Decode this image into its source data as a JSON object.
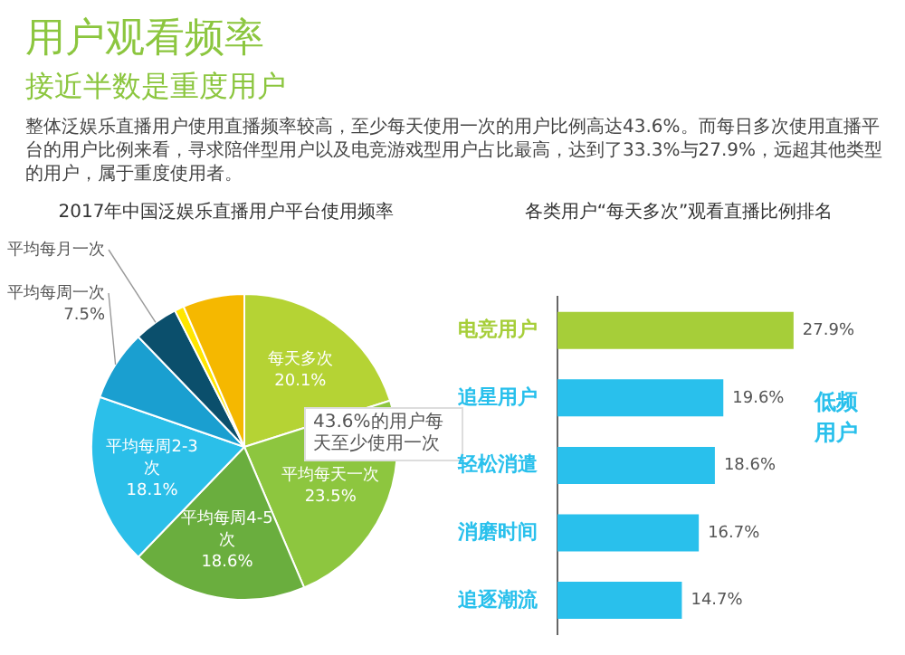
{
  "chart_data": [
    {
      "type": "pie",
      "title": "2017年中国泛娱乐直播用户平台使用频率",
      "annotations": [
        "用户观看频率",
        "接近半数是重度用户",
        "整体泛娱乐直播用户使用直播频率较高，至少每天使用一次的用户比例高达43.6%。而每日多次使用直播平台的用户比例来看，寻求陪伴型用户以及电竞游戏型用户占比最高，达到了33.3%与27.9%，远超其他类型的用户，属于重度使用者。",
        "43.6%的用户每天至少使用一次"
      ],
      "categories": [
        "每天多次",
        "平均每天一次",
        "平均每周4-5次",
        "平均每周2-3次",
        "平均每周一次",
        "平均每月一次",
        null,
        null
      ],
      "values": [
        20.1,
        23.5,
        18.6,
        18.1,
        7.5,
        4.7,
        1.0,
        6.5
      ],
      "value_labels": [
        "20.1%",
        "23.5%",
        "18.6%",
        "18.1%",
        "7.5%",
        null,
        null,
        null
      ],
      "colors": [
        "#b5d334",
        "#8dc63f",
        "#6aae3e",
        "#2bbfe9",
        "#1a9fd0",
        "#0b4f6c",
        "#ffe600",
        "#f5b800"
      ],
      "legend": false
    },
    {
      "type": "bar",
      "orientation": "horizontal",
      "title": "各类用户“每天多次”观看直播比例排名",
      "annotations": [
        "低频用户"
      ],
      "categories": [
        "电竞用户",
        "追星用户",
        "轻松消遣",
        "消磨时间",
        "追逐潮流"
      ],
      "values": [
        27.9,
        19.6,
        18.6,
        16.7,
        14.7
      ],
      "value_labels": [
        "27.9%",
        "19.6%",
        "18.6%",
        "16.7%",
        "14.7%"
      ],
      "colors": [
        "#a6ce39",
        "#29c0ec",
        "#29c0ec",
        "#29c0ec",
        "#29c0ec"
      ],
      "legend": false
    }
  ]
}
